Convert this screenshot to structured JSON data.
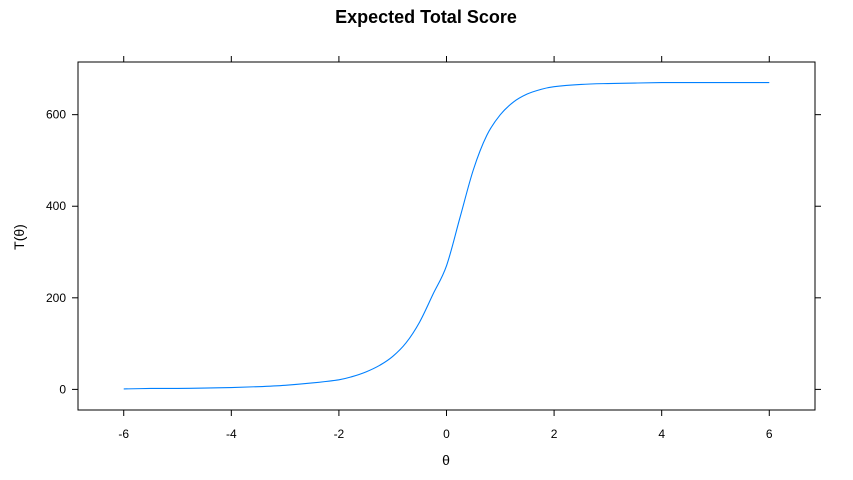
{
  "chart_data": {
    "type": "line",
    "title": "Expected Total Score",
    "xlabel": "θ",
    "ylabel": "T(θ)",
    "xlim": [
      -6.85,
      6.85
    ],
    "ylim": [
      -45,
      715
    ],
    "x_ticks": [
      -6,
      -4,
      -2,
      0,
      2,
      4,
      6
    ],
    "x_tick_labels": [
      "-6",
      "-4",
      "-2",
      "0",
      "2",
      "4",
      "6"
    ],
    "y_ticks": [
      0,
      200,
      400,
      600
    ],
    "y_tick_labels": [
      "0",
      "200",
      "400",
      "600"
    ],
    "grid": false,
    "line_color": "#0080ff",
    "series": [
      {
        "x": [
          -6.0,
          -5.5,
          -5.0,
          -4.5,
          -4.0,
          -3.5,
          -3.0,
          -2.5,
          -2.0,
          -1.75,
          -1.5,
          -1.25,
          -1.0,
          -0.75,
          -0.5,
          -0.25,
          0.0,
          0.25,
          0.5,
          0.75,
          1.0,
          1.25,
          1.5,
          1.75,
          2.0,
          2.5,
          3.0,
          3.5,
          4.0,
          4.5,
          5.0,
          5.5,
          6.0
        ],
        "y": [
          1,
          2,
          2,
          3,
          4,
          6,
          9,
          14,
          21,
          28,
          38,
          52,
          72,
          102,
          147,
          208,
          270,
          375,
          480,
          555,
          600,
          628,
          645,
          655,
          661,
          666,
          668,
          669,
          670,
          670,
          670,
          670,
          670
        ]
      }
    ]
  }
}
